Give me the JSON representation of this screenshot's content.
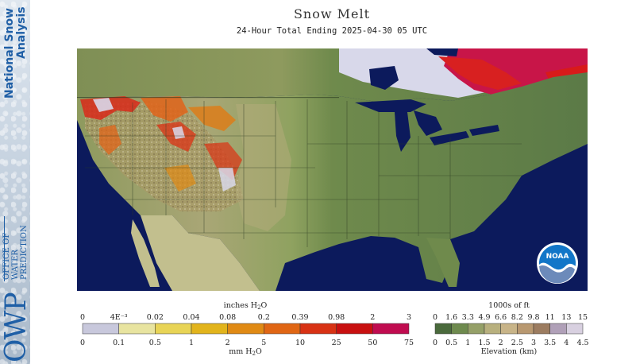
{
  "branding": {
    "line1": "National Snow",
    "line2": "Analysis",
    "org_abbrev": "OWP",
    "org_line1": "OFFICE OF",
    "org_line2": "WATER",
    "org_line3": "PREDICTION",
    "logo": "NOAA",
    "logo_icon": "noaa-logo-icon"
  },
  "header": {
    "title": "Snow Melt",
    "subtitle": "24-Hour Total Ending 2025-04-30 05 UTC"
  },
  "colors": {
    "ocean": "#0c1a5c",
    "lake": "#0c1a5c",
    "land_green_dark": "#5a7a45",
    "land_green_mid": "#7a9254",
    "land_tan": "#b3ac7a",
    "canada_snow": "#d8d8ea",
    "melt_red": "#d81a1a",
    "melt_magenta": "#c4104f",
    "melt_orange": "#e07b14"
  },
  "melt_legend": {
    "top_label": "inches H",
    "top_label_sub": "2",
    "top_label_tail": "O",
    "inches": [
      "0",
      "4E⁻³",
      "0.02",
      "0.04",
      "0.08",
      "0.2",
      "0.39",
      "0.98",
      "2",
      "3"
    ],
    "mm": [
      "0",
      "0.1",
      "0.5",
      "1",
      "2",
      "5",
      "10",
      "25",
      "50",
      "75"
    ],
    "bottom_label": "mm H",
    "bottom_label_sub": "2",
    "bottom_label_tail": "O",
    "colors": [
      "#c8c8dc",
      "#e8e4a0",
      "#e8d456",
      "#e2b41c",
      "#e08a14",
      "#e06614",
      "#d83214",
      "#c81010",
      "#c00c50"
    ]
  },
  "elev_legend": {
    "top_label": "1000s of ft",
    "feet": [
      "0",
      "1.6",
      "3.3",
      "4.9",
      "6.6",
      "8.2",
      "9.8",
      "11",
      "13",
      "15"
    ],
    "km": [
      "0",
      "0.5",
      "1",
      "1.5",
      "2",
      "2.5",
      "3",
      "3.5",
      "4",
      "4.5"
    ],
    "bottom_label": "Elevation (km)",
    "colors": [
      "#4a6a3c",
      "#6e8a4e",
      "#95a068",
      "#b8b07e",
      "#c8b488",
      "#b89870",
      "#9c7c60",
      "#b0a0b8",
      "#d8d0e0"
    ]
  }
}
